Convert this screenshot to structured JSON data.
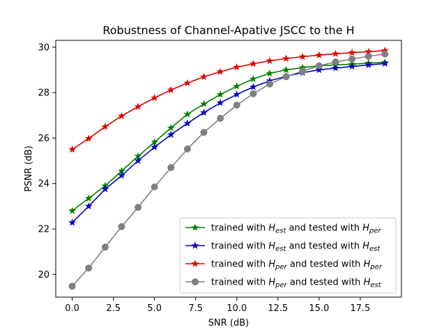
{
  "chart_data": {
    "type": "line",
    "title": "Robustness of Channel-Apative JSCC to the H",
    "xlabel": "SNR (dB)",
    "ylabel": "PSNR (dB)",
    "xlim": [
      -1,
      20
    ],
    "ylim": [
      19.0,
      30.3
    ],
    "xticks": [
      0.0,
      2.5,
      5.0,
      7.5,
      10.0,
      12.5,
      15.0,
      17.5
    ],
    "xtick_labels": [
      "0.0",
      "2.5",
      "5.0",
      "7.5",
      "10.0",
      "12.5",
      "15.0",
      "17.5"
    ],
    "yticks": [
      20,
      22,
      24,
      26,
      28,
      30
    ],
    "ytick_labels": [
      "20",
      "22",
      "24",
      "26",
      "28",
      "30"
    ],
    "grid": false,
    "legend_position": "bottom-right",
    "x": [
      0,
      1,
      2,
      3,
      4,
      5,
      6,
      7,
      8,
      9,
      10,
      11,
      12,
      13,
      14,
      15,
      16,
      17,
      18,
      19
    ],
    "series": [
      {
        "name": "trained with H_est and tested with H_per",
        "legend": {
          "pre": "trained with ",
          "sym1": "H",
          "sub1": "est",
          "mid": " and tested with ",
          "sym2": "H",
          "sub2": "per"
        },
        "color": "#008000",
        "marker": "star",
        "values": [
          22.8,
          23.35,
          23.9,
          24.55,
          25.2,
          25.82,
          26.45,
          27.05,
          27.5,
          27.92,
          28.28,
          28.6,
          28.85,
          29.0,
          29.1,
          29.18,
          29.22,
          29.25,
          29.3,
          29.33
        ]
      },
      {
        "name": "trained with H_est and tested with H_est",
        "legend": {
          "pre": "trained with ",
          "sym1": "H",
          "sub1": "est",
          "mid": " and tested with ",
          "sym2": "H",
          "sub2": "est"
        },
        "color": "#0000cc",
        "marker": "star",
        "values": [
          22.28,
          23.0,
          23.75,
          24.35,
          25.0,
          25.6,
          26.15,
          26.65,
          27.12,
          27.55,
          27.92,
          28.25,
          28.52,
          28.72,
          28.88,
          29.0,
          29.08,
          29.15,
          29.22,
          29.28
        ]
      },
      {
        "name": "trained with H_per and tested with H_per",
        "legend": {
          "pre": "trained with ",
          "sym1": "H",
          "sub1": "per",
          "mid": " and tested with ",
          "sym2": "H",
          "sub2": "per"
        },
        "color": "#dd0000",
        "marker": "star",
        "values": [
          25.5,
          25.98,
          26.5,
          26.97,
          27.38,
          27.77,
          28.12,
          28.42,
          28.7,
          28.92,
          29.12,
          29.27,
          29.4,
          29.5,
          29.58,
          29.65,
          29.71,
          29.76,
          29.8,
          29.85
        ]
      },
      {
        "name": "trained with H_per and tested with H_est",
        "legend": {
          "pre": "trained with ",
          "sym1": "H",
          "sub1": "per",
          "mid": " and tested with ",
          "sym2": "H",
          "sub2": "est"
        },
        "color": "#808080",
        "marker": "circle",
        "values": [
          19.48,
          20.28,
          21.2,
          22.1,
          22.95,
          23.85,
          24.7,
          25.52,
          26.25,
          26.87,
          27.45,
          27.95,
          28.38,
          28.7,
          28.95,
          29.18,
          29.35,
          29.48,
          29.6,
          29.7
        ]
      }
    ]
  }
}
